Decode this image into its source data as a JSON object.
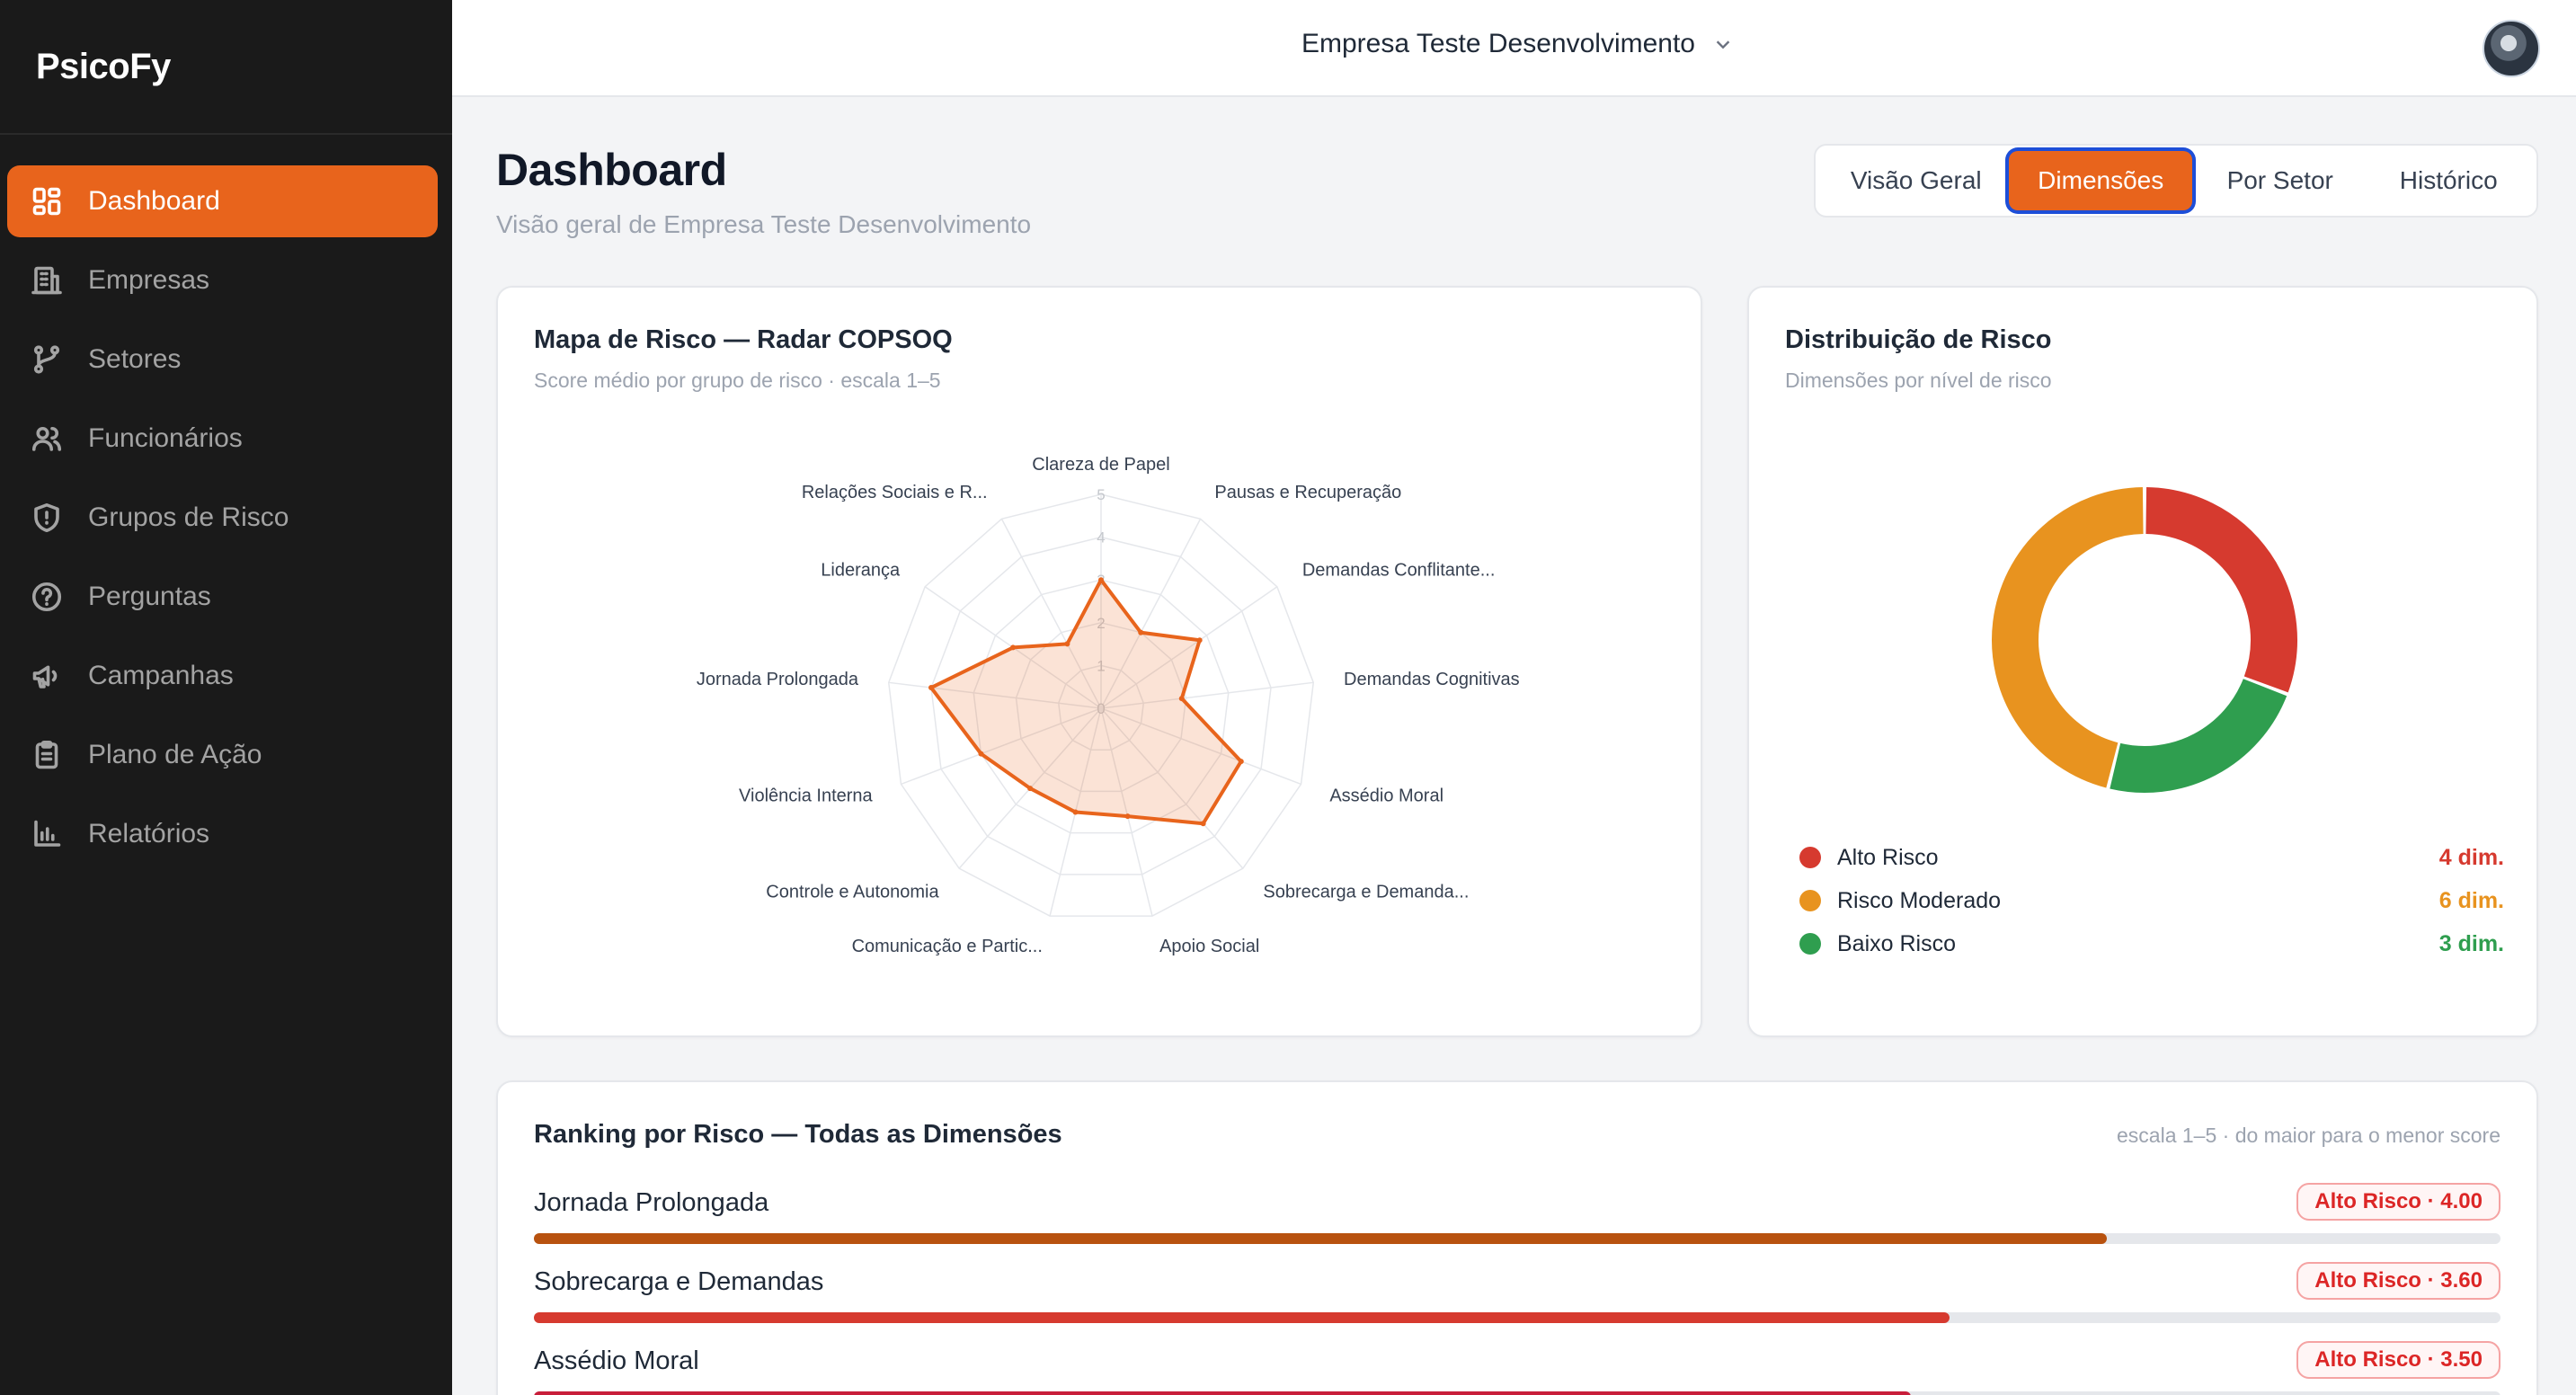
{
  "app": {
    "brand": "PsicoFy"
  },
  "sidebar": {
    "items": [
      {
        "label": "Dashboard",
        "icon": "dashboard-icon",
        "active": true
      },
      {
        "label": "Empresas",
        "icon": "building-icon"
      },
      {
        "label": "Setores",
        "icon": "branch-icon"
      },
      {
        "label": "Funcionários",
        "icon": "users-icon"
      },
      {
        "label": "Grupos de Risco",
        "icon": "shield-icon"
      },
      {
        "label": "Perguntas",
        "icon": "question-icon"
      },
      {
        "label": "Campanhas",
        "icon": "megaphone-icon"
      },
      {
        "label": "Plano de Ação",
        "icon": "clipboard-icon"
      },
      {
        "label": "Relatórios",
        "icon": "bar-chart-icon"
      }
    ]
  },
  "topbar": {
    "company": "Empresa Teste Desenvolvimento"
  },
  "header": {
    "title": "Dashboard",
    "subtitle": "Visão geral de Empresa Teste Desenvolvimento",
    "tabs": [
      "Visão Geral",
      "Dimensões",
      "Por Setor",
      "Histórico"
    ],
    "active_tab": "Dimensões"
  },
  "colors": {
    "accent": "#e8641c",
    "high": "#d63a2f",
    "moderate": "#e8931f",
    "low": "#2f9e4f"
  },
  "radar": {
    "title": "Mapa de Risco — Radar COPSOQ",
    "subtitle": "Score médio por grupo de risco · escala 1–5"
  },
  "distribution": {
    "title": "Distribuição de Risco",
    "subtitle": "Dimensões por nível de risco",
    "legend": [
      {
        "label": "Alto Risco",
        "value_text": "4 dim.",
        "color": "#d63a2f"
      },
      {
        "label": "Risco Moderado",
        "value_text": "6 dim.",
        "color": "#e8931f"
      },
      {
        "label": "Baixo Risco",
        "value_text": "3 dim.",
        "color": "#2f9e4f"
      }
    ]
  },
  "ranking": {
    "title": "Ranking por Risco — Todas as Dimensões",
    "subtitle": "escala 1–5 · do maior para o menor score",
    "items": [
      {
        "name": "Jornada Prolongada",
        "badge": "Alto Risco · 4.00",
        "value": 4.0,
        "fill_fraction": 0.8,
        "color": "#b8520f"
      },
      {
        "name": "Sobrecarga e Demandas",
        "badge": "Alto Risco · 3.60",
        "value": 3.6,
        "fill_fraction": 0.72,
        "color": "#d63a2f"
      },
      {
        "name": "Assédio Moral",
        "badge": "Alto Risco · 3.50",
        "value": 3.5,
        "fill_fraction": 0.7,
        "color": "#c81e3a"
      }
    ]
  },
  "chart_data": [
    {
      "type": "radar",
      "title": "Mapa de Risco — Radar COPSOQ",
      "subtitle": "Score médio por grupo de risco · escala 1–5",
      "range": [
        0,
        5
      ],
      "ticks": [
        "0",
        "1",
        "2",
        "3",
        "4",
        "5"
      ],
      "categories": [
        "Clareza de Papel",
        "Pausas e Recuperação",
        "Demandas Conflitante...",
        "Demandas Cognitivas",
        "Assédio Moral",
        "Sobrecarga e Demanda...",
        "Apoio Social",
        "Comunicação e Partic...",
        "Controle e Autonomia",
        "Violência Interna",
        "Jornada Prolongada",
        "Liderança",
        "Relações Sociais e R..."
      ],
      "values": [
        3.0,
        2.0,
        2.8,
        1.9,
        3.5,
        3.6,
        2.6,
        2.5,
        2.5,
        3.0,
        4.0,
        2.5,
        1.7
      ],
      "color": "#e8641c"
    },
    {
      "type": "pie",
      "title": "Distribuição de Risco",
      "subtitle": "Dimensões por nível de risco",
      "categories": [
        "Alto Risco",
        "Baixo Risco",
        "Risco Moderado"
      ],
      "values": [
        4,
        3,
        6
      ],
      "colors": [
        "#d63a2f",
        "#2f9e4f",
        "#e8931f"
      ]
    }
  ]
}
